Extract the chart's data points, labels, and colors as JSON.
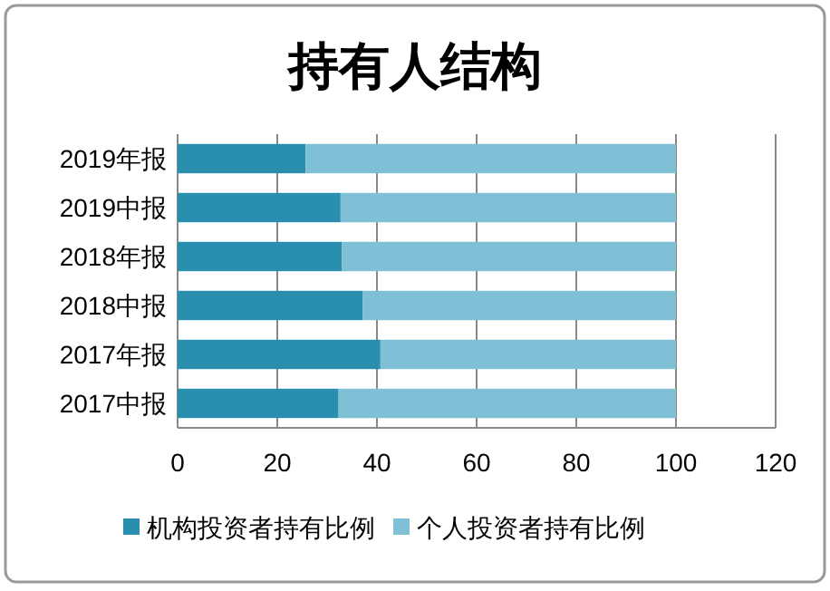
{
  "chart_data": {
    "type": "bar",
    "orientation": "horizontal",
    "stacked": true,
    "title": "持有人结构",
    "categories": [
      "2019年报",
      "2019中报",
      "2018年报",
      "2018中报",
      "2017年报",
      "2017中报"
    ],
    "series": [
      {
        "name": "机构投资者持有比例",
        "color": "#2a8fae",
        "values": [
          25.7,
          32.7,
          33.0,
          37.1,
          40.7,
          32.3
        ]
      },
      {
        "name": "个人投资者持有比例",
        "color": "#80c0d6",
        "values": [
          74.3,
          67.3,
          67.0,
          62.9,
          59.3,
          67.7
        ]
      }
    ],
    "xlim": [
      0,
      120
    ],
    "xticks": [
      0,
      20,
      40,
      60,
      80,
      100,
      120
    ],
    "grid": "x",
    "legend": "bottom"
  }
}
